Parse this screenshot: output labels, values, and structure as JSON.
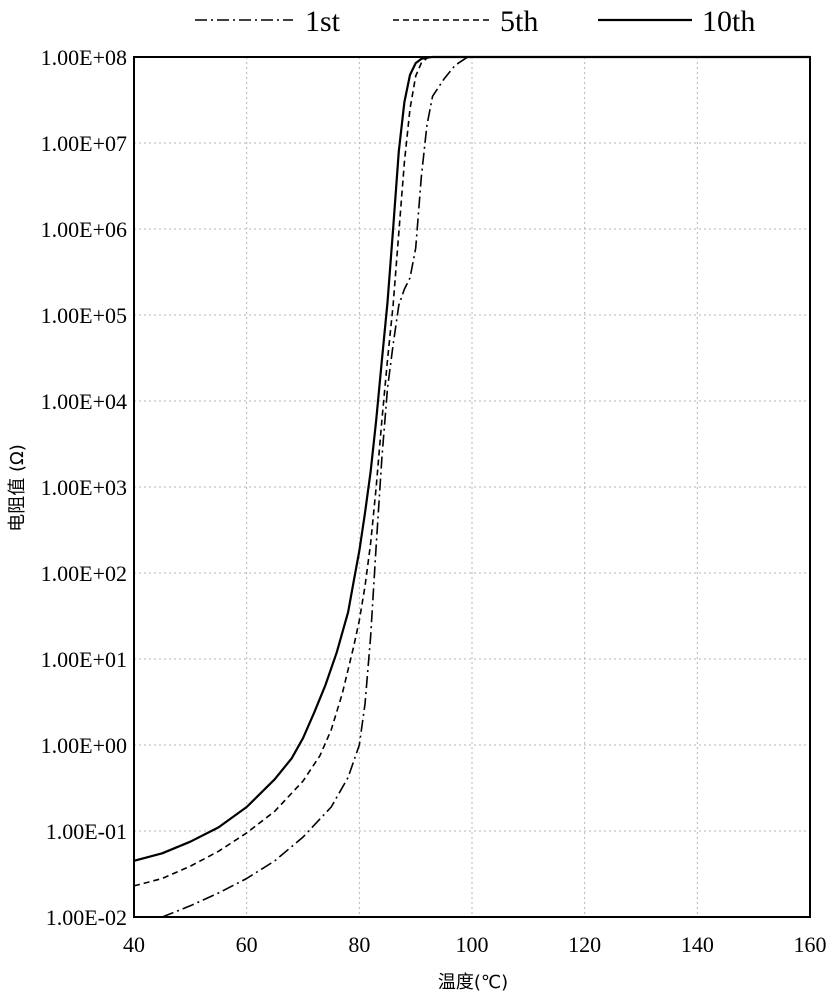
{
  "chart_data": {
    "type": "line",
    "title": "",
    "xlabel": "温度(℃)",
    "ylabel": "电阻值 (Ω)",
    "xlim": [
      40,
      160
    ],
    "ylim_log10": [
      -2,
      8
    ],
    "y_scale": "log",
    "grid": true,
    "legend_position": "top",
    "x_ticks": [
      40,
      60,
      80,
      100,
      120,
      140,
      160
    ],
    "x_tick_labels": [
      "40",
      "60",
      "80",
      "100",
      "120",
      "140",
      "160"
    ],
    "y_ticks_log10": [
      -2,
      -1,
      0,
      1,
      2,
      3,
      4,
      5,
      6,
      7,
      8
    ],
    "y_tick_labels": [
      "1.00E-02",
      "1.00E-01",
      "1.00E+00",
      "1.00E+01",
      "1.00E+02",
      "1.00E+03",
      "1.00E+04",
      "1.00E+05",
      "1.00E+06",
      "1.00E+07",
      "1.00E+08"
    ],
    "series": [
      {
        "name": "1st",
        "style": "dashdot",
        "color": "#000000",
        "x": [
          45,
          50,
          55,
          60,
          65,
          70,
          75,
          78,
          80,
          81,
          82,
          83,
          84,
          85,
          86,
          87,
          88,
          89,
          90,
          91,
          92,
          93,
          95,
          97,
          99,
          100,
          110,
          160
        ],
        "y": [
          0.01,
          0.0135,
          0.019,
          0.028,
          0.045,
          0.085,
          0.19,
          0.42,
          1.0,
          3.0,
          18.0,
          210.0,
          2200.0,
          14000.0,
          45000.0,
          130000.0,
          200000.0,
          270000.0,
          600000.0,
          4000000.0,
          16000000.0,
          35000000.0,
          55000000.0,
          80000000.0,
          98000000.0,
          100000000.0,
          100000000.0,
          100000000.0
        ]
      },
      {
        "name": "5th",
        "style": "dashed",
        "color": "#000000",
        "x": [
          40,
          45,
          50,
          55,
          60,
          65,
          70,
          73,
          75,
          77,
          79,
          80,
          81,
          82,
          83,
          84,
          85,
          86,
          87,
          88,
          89,
          90,
          91,
          92,
          93,
          100,
          160
        ],
        "y": [
          0.023,
          0.028,
          0.039,
          0.058,
          0.095,
          0.17,
          0.38,
          0.75,
          1.5,
          4.0,
          14.0,
          28.0,
          70.0,
          220.0,
          1000.0,
          6000.0,
          30000.0,
          130000.0,
          900000.0,
          6000000.0,
          25000000.0,
          60000000.0,
          85000000.0,
          97000000.0,
          100000000.0,
          100000000.0,
          100000000.0
        ]
      },
      {
        "name": "10th",
        "style": "solid",
        "color": "#000000",
        "x": [
          40,
          45,
          50,
          55,
          60,
          65,
          68,
          70,
          72,
          74,
          76,
          78,
          79,
          80,
          81,
          82,
          83,
          84,
          85,
          86,
          87,
          88,
          89,
          90,
          91,
          92,
          93,
          100,
          160
        ],
        "y": [
          0.045,
          0.055,
          0.075,
          0.11,
          0.19,
          0.4,
          0.7,
          1.2,
          2.4,
          5.0,
          12.0,
          35.0,
          80.0,
          180.0,
          500.0,
          1500.0,
          6000.0,
          30000.0,
          140000.0,
          1000000.0,
          8000000.0,
          30000000.0,
          62000000.0,
          85000000.0,
          95000000.0,
          99000000.0,
          100000000.0,
          100000000.0,
          100000000.0
        ]
      }
    ]
  }
}
